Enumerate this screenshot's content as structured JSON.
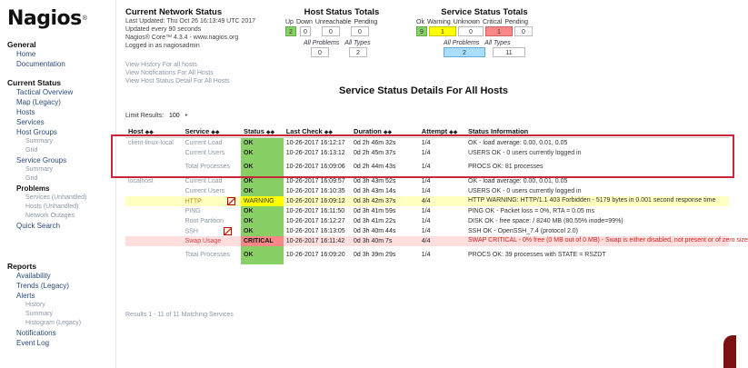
{
  "brand": {
    "logo_text": "Nagios",
    "reg": "®"
  },
  "sidebar": {
    "general": {
      "title": "General",
      "items": [
        "Home",
        "Documentation"
      ]
    },
    "current_status": {
      "title": "Current Status",
      "items": [
        {
          "label": "Tactical Overview"
        },
        {
          "label": "Map    (Legacy)"
        },
        {
          "label": "Hosts"
        },
        {
          "label": "Services"
        },
        {
          "label": "Host Groups",
          "subs": [
            "Summary",
            "Grid"
          ]
        },
        {
          "label": "Service Groups",
          "subs": [
            "Summary",
            "Grid"
          ]
        },
        {
          "label": "Problems",
          "subs": [
            "Services (Unhandled)",
            "Hosts (Unhandled)",
            "Network Outages"
          ]
        },
        {
          "label": "Quick Search"
        }
      ]
    },
    "reports": {
      "title": "Reports",
      "items": [
        {
          "label": "Availability"
        },
        {
          "label": "Trends    (Legacy)"
        },
        {
          "label": "Alerts",
          "subs": [
            "History",
            "Summary",
            "Histogram (Legacy)"
          ]
        },
        {
          "label": "Notifications"
        },
        {
          "label": "Event Log"
        }
      ]
    }
  },
  "header": {
    "cns_title": "Current Network Status",
    "last_updated": "Last Updated: Thu Oct 26 16:13:49 UTC 2017",
    "update_interval": "Updated every 90 seconds",
    "version": "Nagios® Core™ 4.3.4 - www.nagios.org",
    "logged_in": "Logged in as nagiosadmin",
    "links": [
      "View History For all hosts",
      "View Notifications For All Hosts",
      "View Host Status Detail For All Hosts"
    ]
  },
  "host_totals": {
    "title": "Host Status Totals",
    "labels": [
      "Up",
      "Down",
      "Unreachable",
      "Pending"
    ],
    "values": [
      "2",
      "0",
      "0",
      "0"
    ],
    "sub_labels": [
      "All Problems",
      "All Types"
    ],
    "sub_values": [
      "0",
      "2"
    ]
  },
  "service_totals": {
    "title": "Service Status Totals",
    "labels": [
      "Ok",
      "Warning",
      "Unknown",
      "Critical",
      "Pending"
    ],
    "values": [
      "9",
      "1",
      "0",
      "1",
      "0"
    ],
    "sub_labels": [
      "All Problems",
      "All Types"
    ],
    "sub_values": [
      "2",
      "11"
    ]
  },
  "page_heading": "Service Status Details For All Hosts",
  "limit": {
    "label": "Limit Results:",
    "value": "100"
  },
  "table": {
    "columns": [
      "Host",
      "Service",
      "Status",
      "Last Check",
      "Duration",
      "Attempt",
      "Status Information"
    ],
    "rows": [
      {
        "host": "client-linux-local",
        "service": "Current Load",
        "status": "OK",
        "last_check": "10-26-2017 16:12:17",
        "duration": "0d 2h 46m 32s",
        "attempt": "1/4",
        "info": "OK - load average: 0.00, 0.01, 0.05",
        "kind": "ok",
        "icon": false
      },
      {
        "host": "",
        "service": "Current Users",
        "status": "OK",
        "last_check": "10-26-2017 16:13:12",
        "duration": "0d 2h 45m 37s",
        "attempt": "1/4",
        "info": "USERS OK - 0 users currently logged in",
        "kind": "ok",
        "icon": false
      },
      {
        "host": "",
        "service": "Total Processes",
        "status": "OK",
        "last_check": "10-26-2017 16:09:06",
        "duration": "0d 2h 44m 43s",
        "attempt": "1/4",
        "info": "PROCS OK: 81 processes",
        "kind": "ok",
        "icon": false,
        "tall": true
      },
      {
        "host": "localhost",
        "service": "Current Load",
        "status": "OK",
        "last_check": "10-26-2017 16:09:57",
        "duration": "0d 3h 43m 52s",
        "attempt": "1/4",
        "info": "OK - load average: 0.00, 0.01, 0.05",
        "kind": "ok",
        "icon": false
      },
      {
        "host": "",
        "service": "Current Users",
        "status": "OK",
        "last_check": "10-26-2017 16:10:35",
        "duration": "0d 3h 43m 14s",
        "attempt": "1/4",
        "info": "USERS OK - 0 users currently logged in",
        "kind": "ok",
        "icon": false
      },
      {
        "host": "",
        "service": "HTTP",
        "status": "WARNING",
        "last_check": "10-26-2017 16:09:12",
        "duration": "0d 3h 42m 37s",
        "attempt": "4/4",
        "info": "HTTP WARNING: HTTP/1.1 403 Forbidden - 5179 bytes in 0.001 second response time",
        "kind": "warn",
        "icon": true
      },
      {
        "host": "",
        "service": "PING",
        "status": "OK",
        "last_check": "10-26-2017 16:11:50",
        "duration": "0d 3h 41m 59s",
        "attempt": "1/4",
        "info": "PING OK - Packet loss = 0%, RTA = 0.05 ms",
        "kind": "ok",
        "icon": false
      },
      {
        "host": "",
        "service": "Root Partition",
        "status": "OK",
        "last_check": "10-26-2017 16:12:27",
        "duration": "0d 3h 41m 22s",
        "attempt": "1/4",
        "info": "DISK OK - free space: / 8240 MB (80.55% inode=99%)",
        "kind": "ok",
        "icon": false
      },
      {
        "host": "",
        "service": "SSH",
        "status": "OK",
        "last_check": "10-26-2017 16:13:05",
        "duration": "0d 3h 40m 44s",
        "attempt": "1/4",
        "info": "SSH OK - OpenSSH_7.4 (protocol 2.0)",
        "kind": "ok",
        "icon": true
      },
      {
        "host": "",
        "service": "Swap Usage",
        "status": "CRITICAL",
        "last_check": "10-26-2017 16:11:42",
        "duration": "0d 3h 40m 7s",
        "attempt": "4/4",
        "info": "SWAP CRITICAL - 0% free (0 MB out of 0 MB) - Swap is either disabled, not present or of zero size",
        "kind": "crit",
        "icon": false
      },
      {
        "host": "",
        "service": "Total Processes",
        "status": "OK",
        "last_check": "10-26-2017 16:09:20",
        "duration": "0d 3h 39m 29s",
        "attempt": "1/4",
        "info": "PROCS OK: 39 processes with STATE = RSZDT",
        "kind": "ok",
        "icon": false,
        "tall": true
      }
    ]
  },
  "results_text": "Results 1 - 11 of 11 Matching Services",
  "colors": {
    "ok": "#88d066",
    "warning": "#ffff00",
    "critical": "#f88888",
    "highlight": "#c8283a"
  }
}
